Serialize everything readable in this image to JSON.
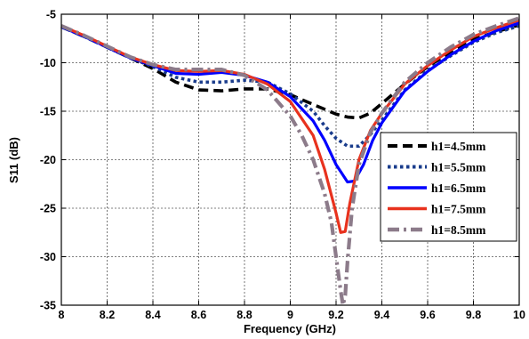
{
  "chart_data": {
    "type": "line",
    "title": "",
    "xlabel": "Frequency (GHz)",
    "ylabel": "S11 (dB)",
    "xlim": [
      8,
      10
    ],
    "ylim": [
      -35,
      -5
    ],
    "xticks": [
      8,
      8.2,
      8.4,
      8.6,
      8.8,
      9,
      9.2,
      9.4,
      9.6,
      9.8,
      10
    ],
    "yticks": [
      -35,
      -30,
      -25,
      -20,
      -15,
      -10,
      -5
    ],
    "xtick_labels": [
      "8",
      "8.2",
      "8.4",
      "8.6",
      "8.8",
      "9",
      "9.2",
      "9.4",
      "9.6",
      "9.8",
      "10"
    ],
    "ytick_labels": [
      "-35",
      "-30",
      "-25",
      "-20",
      "-15",
      "-10",
      "-5"
    ],
    "grid": true,
    "legend_position": "right",
    "series": [
      {
        "name": "h1=4.5mm",
        "color": "#000000",
        "dash": "dashed",
        "x": [
          8,
          8.1,
          8.2,
          8.3,
          8.4,
          8.5,
          8.6,
          8.7,
          8.8,
          8.9,
          9.0,
          9.1,
          9.2,
          9.25,
          9.3,
          9.35,
          9.4,
          9.5,
          9.6,
          9.7,
          9.8,
          9.9,
          10
        ],
        "y": [
          -6.3,
          -7.3,
          -8.4,
          -9.5,
          -10.6,
          -12.0,
          -12.8,
          -12.9,
          -12.7,
          -12.7,
          -13.3,
          -14.3,
          -15.3,
          -15.6,
          -15.7,
          -15.2,
          -14.2,
          -12.2,
          -10.4,
          -8.9,
          -7.6,
          -6.8,
          -6.1
        ]
      },
      {
        "name": "h1=5.5mm",
        "color": "#1a3c8c",
        "dash": "dotted",
        "x": [
          8,
          8.1,
          8.2,
          8.3,
          8.4,
          8.5,
          8.6,
          8.7,
          8.8,
          8.9,
          9.0,
          9.1,
          9.15,
          9.2,
          9.25,
          9.3,
          9.35,
          9.4,
          9.5,
          9.6,
          9.7,
          9.8,
          9.9,
          10
        ],
        "y": [
          -6.3,
          -7.3,
          -8.4,
          -9.5,
          -10.4,
          -11.5,
          -12.0,
          -12.0,
          -11.8,
          -12.0,
          -13.2,
          -15.0,
          -16.5,
          -17.8,
          -18.6,
          -18.6,
          -17.4,
          -15.9,
          -12.8,
          -10.8,
          -9.3,
          -7.9,
          -6.9,
          -6.2
        ]
      },
      {
        "name": "h1=6.5mm",
        "color": "#0000ff",
        "dash": "solid",
        "x": [
          8,
          8.1,
          8.2,
          8.3,
          8.4,
          8.5,
          8.6,
          8.7,
          8.8,
          8.9,
          9.0,
          9.1,
          9.15,
          9.2,
          9.25,
          9.28,
          9.32,
          9.36,
          9.4,
          9.5,
          9.6,
          9.7,
          9.8,
          9.9,
          10
        ],
        "y": [
          -6.3,
          -7.3,
          -8.4,
          -9.5,
          -10.3,
          -11.1,
          -11.2,
          -11.0,
          -11.3,
          -12.0,
          -13.5,
          -16.0,
          -18.0,
          -20.5,
          -22.3,
          -22.2,
          -20.5,
          -18.0,
          -16.2,
          -12.9,
          -10.9,
          -9.2,
          -7.8,
          -6.7,
          -5.9
        ]
      },
      {
        "name": "h1=7.5mm",
        "color": "#e8321e",
        "dash": "solid",
        "x": [
          8,
          8.1,
          8.2,
          8.3,
          8.4,
          8.5,
          8.6,
          8.7,
          8.8,
          8.9,
          9.0,
          9.1,
          9.15,
          9.2,
          9.22,
          9.24,
          9.26,
          9.3,
          9.35,
          9.4,
          9.5,
          9.6,
          9.7,
          9.8,
          9.9,
          10
        ],
        "y": [
          -6.2,
          -7.2,
          -8.3,
          -9.4,
          -10.2,
          -10.8,
          -10.9,
          -10.8,
          -11.2,
          -12.2,
          -14.0,
          -17.5,
          -21.0,
          -25.5,
          -27.5,
          -27.4,
          -24.5,
          -20.0,
          -17.0,
          -15.2,
          -12.2,
          -10.3,
          -8.7,
          -7.3,
          -6.4,
          -5.6
        ]
      },
      {
        "name": "h1=8.5mm",
        "color": "#8c7b8a",
        "dash": "dashdot",
        "x": [
          8,
          8.1,
          8.2,
          8.3,
          8.4,
          8.5,
          8.6,
          8.7,
          8.8,
          8.9,
          9.0,
          9.05,
          9.1,
          9.15,
          9.18,
          9.2,
          9.22,
          9.23,
          9.24,
          9.25,
          9.27,
          9.3,
          9.35,
          9.4,
          9.5,
          9.6,
          9.7,
          9.8,
          9.9,
          10
        ],
        "y": [
          -6.2,
          -7.2,
          -8.3,
          -9.4,
          -10.2,
          -10.7,
          -10.7,
          -10.7,
          -11.3,
          -12.8,
          -15.5,
          -17.5,
          -20.0,
          -23.5,
          -26.5,
          -30.0,
          -33.5,
          -35.0,
          -34.0,
          -30.5,
          -25.0,
          -20.5,
          -17.2,
          -15.2,
          -12.0,
          -10.0,
          -8.4,
          -7.1,
          -6.2,
          -5.4
        ]
      }
    ]
  }
}
